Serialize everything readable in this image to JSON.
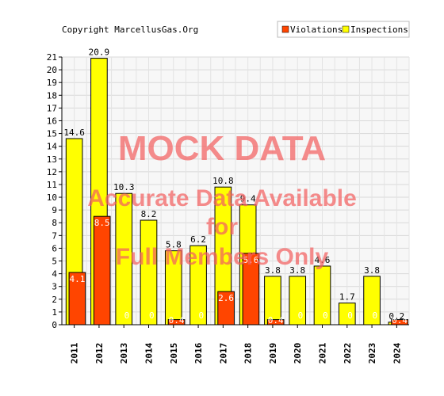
{
  "copyright": "Copyright MarcellusGas.Org",
  "watermark": {
    "line1": "MOCK DATA",
    "line2": "Accurate Data Available",
    "line3": "for",
    "line4": "Full Members Only"
  },
  "chart_data": {
    "type": "bar",
    "title": "",
    "xlabel": "",
    "ylabel": "",
    "categories": [
      "2011",
      "2012",
      "2013",
      "2014",
      "2015",
      "2016",
      "2017",
      "2018",
      "2019",
      "2020",
      "2021",
      "2022",
      "2023",
      "2024"
    ],
    "series": [
      {
        "name": "Violations",
        "color": "#ff4500",
        "values": [
          4.1,
          8.5,
          0,
          0,
          0.4,
          0,
          2.6,
          5.6,
          0.4,
          0,
          0,
          0,
          0,
          0.4
        ]
      },
      {
        "name": "Inspections",
        "color": "#ffff00",
        "values": [
          14.6,
          20.9,
          10.3,
          8.2,
          5.8,
          6.2,
          10.8,
          9.4,
          3.8,
          3.8,
          4.6,
          1.7,
          3.8,
          0.2
        ]
      }
    ],
    "value_labels": {
      "Violations": [
        "4.1",
        "8.5",
        "0",
        "0",
        "0.4",
        "0",
        "2.6",
        "5.6",
        "0.4",
        "0",
        "0",
        "0",
        "0",
        "0.4"
      ],
      "Inspections": [
        "14.6",
        "20.9",
        "10.3",
        "8.2",
        "5.8",
        "6.2",
        "10.8",
        "9.4",
        "3.8",
        "3.8",
        "4.6",
        "1.7",
        "3.8",
        "0.2"
      ]
    },
    "y_ticks": [
      "0",
      "1",
      "2",
      "3",
      "4",
      "5",
      "6",
      "7",
      "8",
      "9",
      "10",
      "11",
      "12",
      "13",
      "14",
      "15",
      "16",
      "17",
      "18",
      "19",
      "20",
      "21"
    ],
    "ylim": [
      0,
      21
    ],
    "grid": true,
    "legend_position": "top-right"
  }
}
